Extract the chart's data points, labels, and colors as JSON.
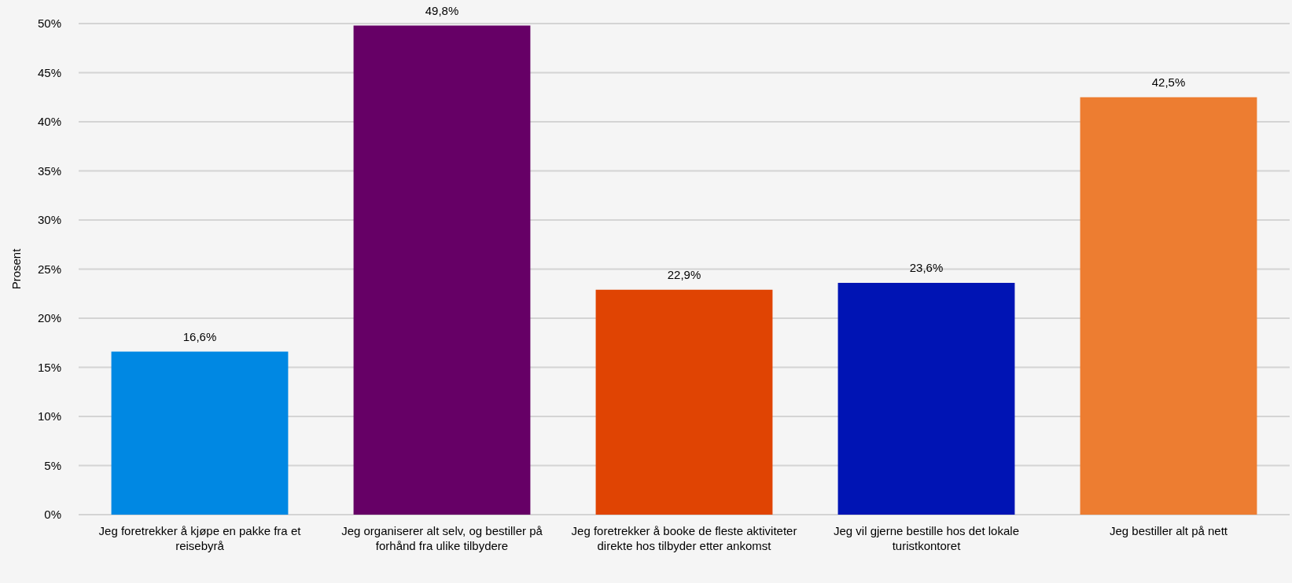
{
  "chart_data": {
    "type": "bar",
    "ylabel": "Prosent",
    "categories": [
      "Jeg foretrekker å kjøpe en pakke fra et reisebyrå",
      "Jeg organiserer alt selv, og bestiller på forhånd fra ulike tilbydere",
      "Jeg foretrekker å booke de fleste aktiviteter direkte hos tilbyder etter ankomst",
      "Jeg vil gjerne bestille hos det lokale turistkontoret",
      "Jeg bestiller alt på nett"
    ],
    "values": [
      16.6,
      49.8,
      22.9,
      23.6,
      42.5
    ],
    "colors": [
      "#0088e3",
      "#660066",
      "#e04403",
      "#0014b4",
      "#ed7d31"
    ],
    "value_labels": [
      "16,6%",
      "49,8%",
      "22,9%",
      "23,6%",
      "42,5%"
    ],
    "ylim": [
      0,
      50
    ],
    "yticks": [
      {
        "value": 0,
        "label": "0%"
      },
      {
        "value": 5,
        "label": "5%"
      },
      {
        "value": 10,
        "label": "10%"
      },
      {
        "value": 15,
        "label": "15%"
      },
      {
        "value": 20,
        "label": "20%"
      },
      {
        "value": 25,
        "label": "25%"
      },
      {
        "value": 30,
        "label": "30%"
      },
      {
        "value": 35,
        "label": "35%"
      },
      {
        "value": 40,
        "label": "40%"
      },
      {
        "value": 45,
        "label": "45%"
      },
      {
        "value": 50,
        "label": "50%"
      }
    ],
    "grid": "y"
  }
}
